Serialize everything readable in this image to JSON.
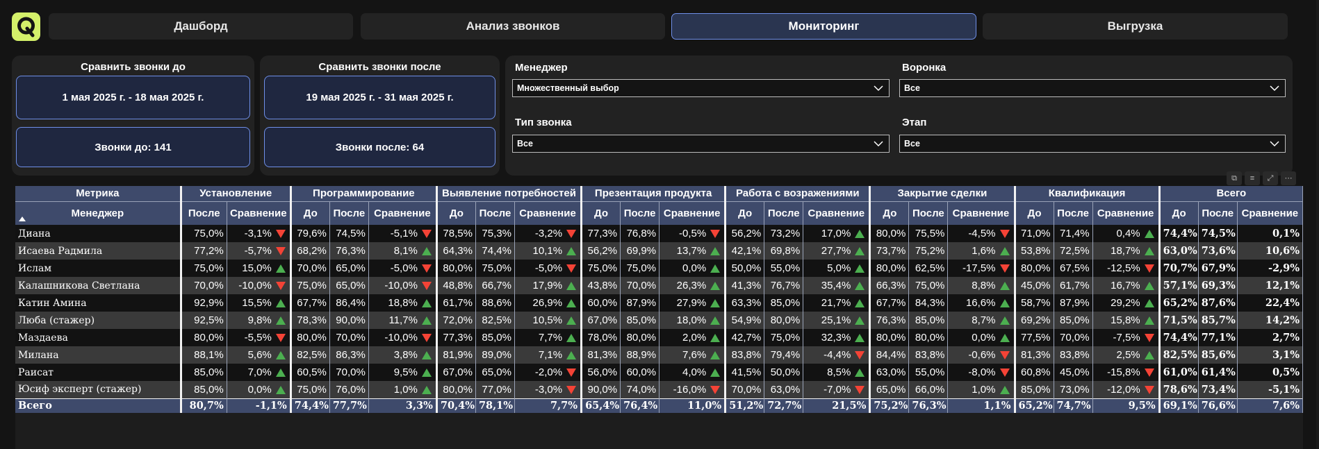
{
  "tabs": [
    "Дашборд",
    "Анализ звонков",
    "Мониторинг",
    "Выгрузка"
  ],
  "active_tab": "Мониторинг",
  "compare_before": {
    "title": "Сравнить звонки до",
    "range": "1 мая 2025 г. - 18 мая 2025 г.",
    "count": "Звонки до: 141"
  },
  "compare_after": {
    "title": "Сравнить звонки после",
    "range": "19 мая 2025 г. - 31 мая 2025 г.",
    "count": "Звонки после: 64"
  },
  "filters": {
    "manager": {
      "label": "Менеджер",
      "value": "Множественный выбор"
    },
    "funnel": {
      "label": "Воронка",
      "value": "Все"
    },
    "call_type": {
      "label": "Тип звонка",
      "value": "Все"
    },
    "stage": {
      "label": "Этап",
      "value": "Все"
    }
  },
  "table": {
    "col_metric": "Метрика",
    "col_manager": "Менеджер",
    "group1": "Установление",
    "groups": [
      "Программирование",
      "Выявление потребностей",
      "Презентация продукта",
      "Работа с возражениями",
      "Закрытие сделки",
      "Квалификация",
      "Всего"
    ],
    "sub_before": "До",
    "sub_after": "После",
    "sub_compare": "Сравнение",
    "rows": [
      {
        "name": "Диана",
        "first": [
          "75,0%",
          "-3,1%",
          "down"
        ],
        "groups": [
          [
            "79,6%",
            "74,5%",
            "-5,1%",
            "down"
          ],
          [
            "78,5%",
            "75,3%",
            "-3,2%",
            "down"
          ],
          [
            "77,3%",
            "76,8%",
            "-0,5%",
            "down"
          ],
          [
            "56,2%",
            "73,2%",
            "17,0%",
            "up"
          ],
          [
            "80,0%",
            "75,5%",
            "-4,5%",
            "down"
          ],
          [
            "71,0%",
            "71,4%",
            "0,4%",
            "up"
          ]
        ],
        "total": [
          "74,4%",
          "74,5%",
          "0,1%"
        ]
      },
      {
        "name": "Исаева Радмила",
        "first": [
          "77,2%",
          "-5,7%",
          "down"
        ],
        "groups": [
          [
            "68,2%",
            "76,3%",
            "8,1%",
            "up"
          ],
          [
            "64,3%",
            "74,4%",
            "10,1%",
            "up"
          ],
          [
            "56,2%",
            "69,9%",
            "13,7%",
            "up"
          ],
          [
            "42,1%",
            "69,8%",
            "27,7%",
            "up"
          ],
          [
            "73,7%",
            "75,2%",
            "1,6%",
            "up"
          ],
          [
            "53,8%",
            "72,5%",
            "18,7%",
            "up"
          ]
        ],
        "total": [
          "63,0%",
          "73,6%",
          "10,6%"
        ]
      },
      {
        "name": "Ислам",
        "first": [
          "75,0%",
          "15,0%",
          "up"
        ],
        "groups": [
          [
            "70,0%",
            "65,0%",
            "-5,0%",
            "down"
          ],
          [
            "80,0%",
            "75,0%",
            "-5,0%",
            "down"
          ],
          [
            "75,0%",
            "75,0%",
            "0,0%",
            "up"
          ],
          [
            "50,0%",
            "55,0%",
            "5,0%",
            "up"
          ],
          [
            "80,0%",
            "62,5%",
            "-17,5%",
            "down"
          ],
          [
            "80,0%",
            "67,5%",
            "-12,5%",
            "down"
          ]
        ],
        "total": [
          "70,7%",
          "67,9%",
          "-2,9%"
        ]
      },
      {
        "name": "Калашникова Светлана",
        "first": [
          "70,0%",
          "-10,0%",
          "down"
        ],
        "groups": [
          [
            "75,0%",
            "65,0%",
            "-10,0%",
            "down"
          ],
          [
            "48,8%",
            "66,7%",
            "17,9%",
            "up"
          ],
          [
            "43,8%",
            "70,0%",
            "26,3%",
            "up"
          ],
          [
            "41,3%",
            "76,7%",
            "35,4%",
            "up"
          ],
          [
            "66,3%",
            "75,0%",
            "8,8%",
            "up"
          ],
          [
            "45,0%",
            "61,7%",
            "16,7%",
            "up"
          ]
        ],
        "total": [
          "57,1%",
          "69,3%",
          "12,1%"
        ]
      },
      {
        "name": "Катин Амина",
        "first": [
          "92,9%",
          "15,5%",
          "up"
        ],
        "groups": [
          [
            "67,7%",
            "86,4%",
            "18,8%",
            "up"
          ],
          [
            "61,7%",
            "88,6%",
            "26,9%",
            "up"
          ],
          [
            "60,0%",
            "87,9%",
            "27,9%",
            "up"
          ],
          [
            "63,3%",
            "85,0%",
            "21,7%",
            "up"
          ],
          [
            "67,7%",
            "84,3%",
            "16,6%",
            "up"
          ],
          [
            "58,7%",
            "87,9%",
            "29,2%",
            "up"
          ]
        ],
        "total": [
          "65,2%",
          "87,6%",
          "22,4%"
        ]
      },
      {
        "name": "Люба (стажер)",
        "first": [
          "92,5%",
          "9,8%",
          "up"
        ],
        "groups": [
          [
            "78,3%",
            "90,0%",
            "11,7%",
            "up"
          ],
          [
            "72,0%",
            "82,5%",
            "10,5%",
            "up"
          ],
          [
            "67,0%",
            "85,0%",
            "18,0%",
            "up"
          ],
          [
            "54,9%",
            "80,0%",
            "25,1%",
            "up"
          ],
          [
            "76,3%",
            "85,0%",
            "8,7%",
            "up"
          ],
          [
            "69,2%",
            "85,0%",
            "15,8%",
            "up"
          ]
        ],
        "total": [
          "71,5%",
          "85,7%",
          "14,2%"
        ]
      },
      {
        "name": "Маздаева",
        "first": [
          "80,0%",
          "-5,5%",
          "down"
        ],
        "groups": [
          [
            "80,0%",
            "70,0%",
            "-10,0%",
            "down"
          ],
          [
            "77,3%",
            "85,0%",
            "7,7%",
            "up"
          ],
          [
            "78,0%",
            "80,0%",
            "2,0%",
            "up"
          ],
          [
            "42,7%",
            "75,0%",
            "32,3%",
            "up"
          ],
          [
            "80,0%",
            "80,0%",
            "0,0%",
            "up"
          ],
          [
            "77,5%",
            "70,0%",
            "-7,5%",
            "down"
          ]
        ],
        "total": [
          "74,4%",
          "77,1%",
          "2,7%"
        ]
      },
      {
        "name": "Милана",
        "first": [
          "88,1%",
          "5,6%",
          "up"
        ],
        "groups": [
          [
            "82,5%",
            "86,3%",
            "3,8%",
            "up"
          ],
          [
            "81,9%",
            "89,0%",
            "7,1%",
            "up"
          ],
          [
            "81,3%",
            "88,9%",
            "7,6%",
            "up"
          ],
          [
            "83,8%",
            "79,4%",
            "-4,4%",
            "down"
          ],
          [
            "84,4%",
            "83,8%",
            "-0,6%",
            "down"
          ],
          [
            "81,3%",
            "83,8%",
            "2,5%",
            "up"
          ]
        ],
        "total": [
          "82,5%",
          "85,6%",
          "3,1%"
        ]
      },
      {
        "name": "Раисат",
        "first": [
          "85,0%",
          "7,0%",
          "up"
        ],
        "groups": [
          [
            "60,5%",
            "70,0%",
            "9,5%",
            "up"
          ],
          [
            "67,0%",
            "65,0%",
            "-2,0%",
            "down"
          ],
          [
            "56,0%",
            "60,0%",
            "4,0%",
            "up"
          ],
          [
            "41,5%",
            "50,0%",
            "8,5%",
            "up"
          ],
          [
            "63,0%",
            "55,0%",
            "-8,0%",
            "down"
          ],
          [
            "60,8%",
            "45,0%",
            "-15,8%",
            "down"
          ]
        ],
        "total": [
          "61,0%",
          "61,4%",
          "0,5%"
        ]
      },
      {
        "name": "Юсиф эксперт (стажер)",
        "first": [
          "85,0%",
          "0,0%",
          "up"
        ],
        "groups": [
          [
            "75,0%",
            "76,0%",
            "1,0%",
            "up"
          ],
          [
            "80,0%",
            "77,0%",
            "-3,0%",
            "down"
          ],
          [
            "90,0%",
            "74,0%",
            "-16,0%",
            "down"
          ],
          [
            "70,0%",
            "63,0%",
            "-7,0%",
            "down"
          ],
          [
            "65,0%",
            "66,0%",
            "1,0%",
            "up"
          ],
          [
            "85,0%",
            "73,0%",
            "-12,0%",
            "down"
          ]
        ],
        "total": [
          "78,6%",
          "73,4%",
          "-5,1%"
        ]
      }
    ],
    "footer": {
      "name": "Всего",
      "first": [
        "80,7%",
        "-1,1%"
      ],
      "groups": [
        [
          "74,4%",
          "77,7%",
          "3,3%"
        ],
        [
          "70,4%",
          "78,1%",
          "7,7%"
        ],
        [
          "65,4%",
          "76,4%",
          "11,0%"
        ],
        [
          "51,2%",
          "72,7%",
          "21,5%"
        ],
        [
          "75,2%",
          "76,3%",
          "1,1%"
        ],
        [
          "65,2%",
          "74,7%",
          "9,5%"
        ]
      ],
      "total": [
        "69,1%",
        "76,6%",
        "7,6%"
      ]
    }
  },
  "colors": {
    "up": "#4caf50",
    "down": "#f44336",
    "header": "#3e4a6b",
    "accent": "#6f8fe8",
    "logo": "#d4f06a"
  }
}
